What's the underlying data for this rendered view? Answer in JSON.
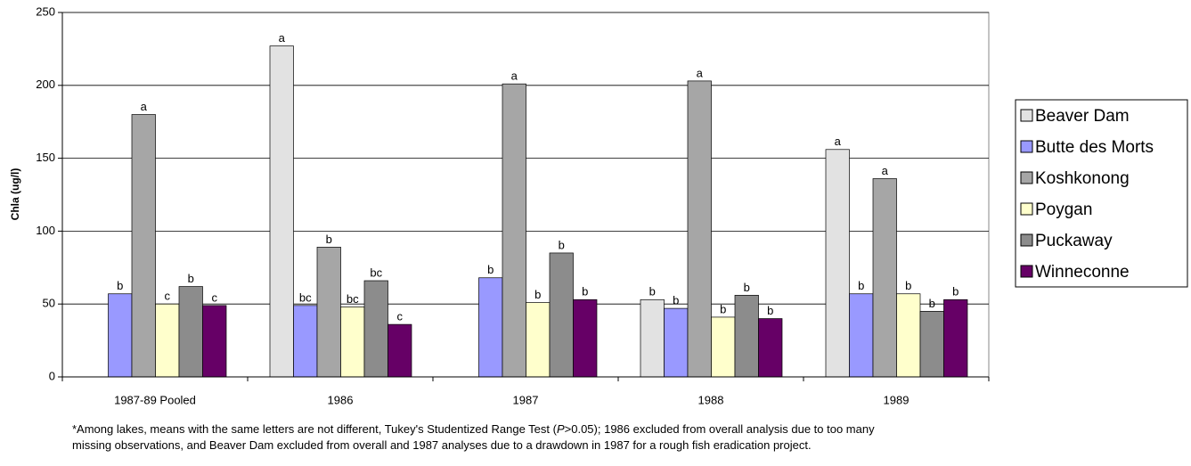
{
  "chart_data": {
    "type": "bar",
    "y_label": "Chla (ug/l)",
    "categories": [
      "1987-89 Pooled",
      "1986",
      "1987",
      "1988",
      "1989"
    ],
    "series": [
      {
        "name": "Beaver Dam",
        "color": "#e2e2e2",
        "values": [
          null,
          227,
          null,
          53,
          156
        ],
        "letters": [
          null,
          "a",
          null,
          "b",
          "a"
        ]
      },
      {
        "name": "Butte des Morts",
        "color": "#9999ff",
        "values": [
          57,
          49,
          68,
          47,
          57
        ],
        "letters": [
          "b",
          "bc",
          "b",
          "b",
          "b"
        ]
      },
      {
        "name": "Koshkonong",
        "color": "#a6a6a6",
        "values": [
          180,
          89,
          201,
          203,
          136
        ],
        "letters": [
          "a",
          "b",
          "a",
          "a",
          "a"
        ]
      },
      {
        "name": "Poygan",
        "color": "#ffffcc",
        "values": [
          50,
          48,
          51,
          41,
          57
        ],
        "letters": [
          "c",
          "bc",
          "b",
          "b",
          "b"
        ]
      },
      {
        "name": "Puckaway",
        "color": "#8c8c8c",
        "values": [
          62,
          66,
          85,
          56,
          45
        ],
        "letters": [
          "b",
          "bc",
          "b",
          "b",
          "b"
        ]
      },
      {
        "name": "Winneconne",
        "color": "#660066",
        "values": [
          49,
          36,
          53,
          40,
          53
        ],
        "letters": [
          "c",
          "c",
          "b",
          "b",
          "b"
        ]
      }
    ],
    "ylim": [
      0,
      250
    ],
    "yticks": [
      0,
      50,
      100,
      150,
      200,
      250
    ],
    "grid": true,
    "legend": "right",
    "footnote": [
      "*Among lakes, means with the same letters are not different, Tukey's Studentized Range Test (",
      "P",
      ">0.05); 1986 excluded from overall analysis due to too many",
      "missing observations, and Beaver Dam excluded from overall and 1987 analyses due to a drawdown in 1987 for a rough fish eradication project."
    ]
  }
}
